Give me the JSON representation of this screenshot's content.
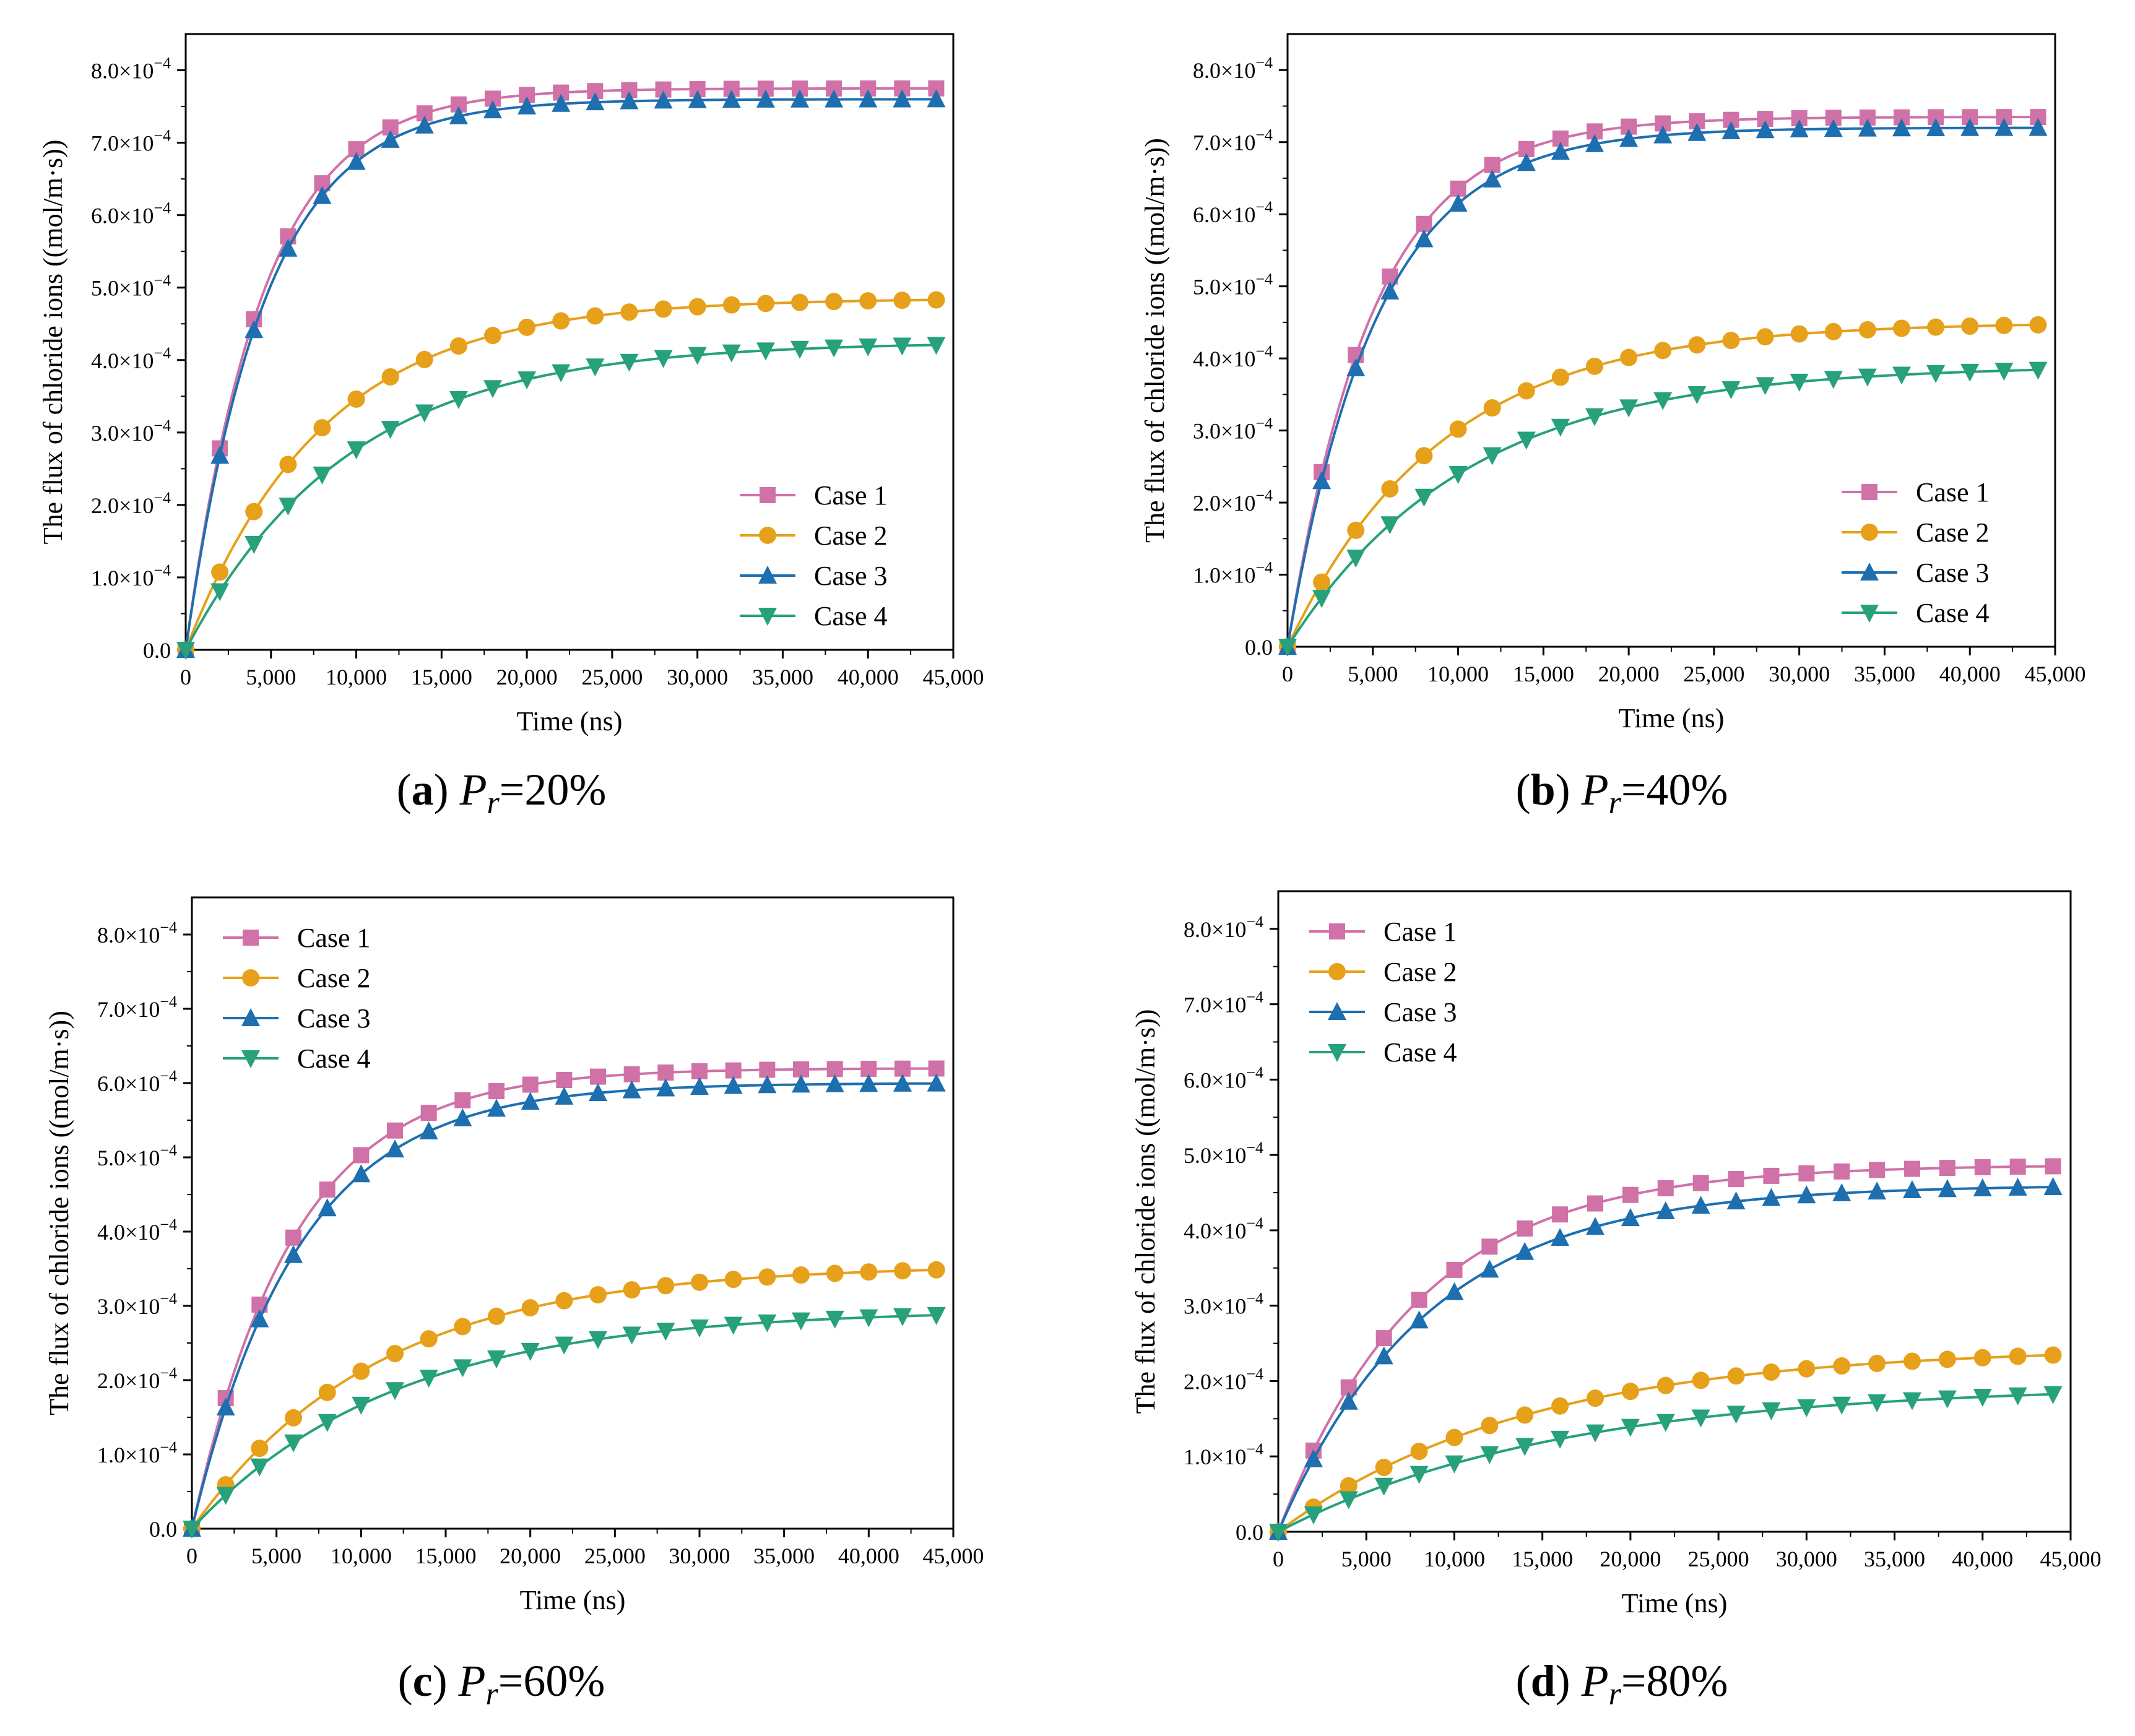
{
  "figure": {
    "series_colors": [
      "#D071A8",
      "#E6A01A",
      "#1D6FB0",
      "#26A17C"
    ],
    "series_markers": [
      "square",
      "circle",
      "triangle-up",
      "triangle-down"
    ],
    "axis_color": "#000000"
  },
  "chart_data": [
    {
      "type": "line",
      "panel_letter": "a",
      "caption_symbol": "P",
      "caption_subscript": "r",
      "caption_operator": "=",
      "caption_value": "20%",
      "xlabel": "Time  (ns)",
      "ylabel": "The flux of chloride ions  ((mol/m·s))",
      "xlim": [
        0,
        45000
      ],
      "ylim": [
        0,
        0.00085
      ],
      "x_ticks": [
        "0",
        "5,000",
        "10,000",
        "15,000",
        "20,000",
        "25,000",
        "30,000",
        "35,000",
        "40,000",
        "45,000"
      ],
      "y_ticks": [
        {
          "mantissa": "0.0",
          "exp": ""
        },
        {
          "mantissa": "1.0×10",
          "exp": "−4"
        },
        {
          "mantissa": "2.0×10",
          "exp": "−4"
        },
        {
          "mantissa": "3.0×10",
          "exp": "−4"
        },
        {
          "mantissa": "4.0×10",
          "exp": "−4"
        },
        {
          "mantissa": "5.0×10",
          "exp": "−4"
        },
        {
          "mantissa": "6.0×10",
          "exp": "−4"
        },
        {
          "mantissa": "7.0×10",
          "exp": "−4"
        },
        {
          "mantissa": "8.0×10",
          "exp": "−4"
        }
      ],
      "legend_position": "bottom-right",
      "grid": false,
      "series": [
        {
          "name": "Case 1",
          "final": 0.000775,
          "tau": 4500
        },
        {
          "name": "Case 2",
          "final": 0.000485,
          "tau": 8000
        },
        {
          "name": "Case 3",
          "final": 0.00076,
          "tau": 4600
        },
        {
          "name": "Case 4",
          "final": 0.000425,
          "tau": 9500
        }
      ]
    },
    {
      "type": "line",
      "panel_letter": "b",
      "caption_symbol": "P",
      "caption_subscript": "r",
      "caption_operator": "=",
      "caption_value": "40%",
      "xlabel": "Time  (ns)",
      "ylabel": "The flux of chloride ions  ((mol/m·s))",
      "xlim": [
        0,
        45000
      ],
      "ylim": [
        0,
        0.00085
      ],
      "x_ticks": [
        "0",
        "5,000",
        "10,000",
        "15,000",
        "20,000",
        "25,000",
        "30,000",
        "35,000",
        "40,000",
        "45,000"
      ],
      "y_ticks": [
        {
          "mantissa": "0.0",
          "exp": ""
        },
        {
          "mantissa": "1.0×10",
          "exp": "−4"
        },
        {
          "mantissa": "2.0×10",
          "exp": "−4"
        },
        {
          "mantissa": "3.0×10",
          "exp": "−4"
        },
        {
          "mantissa": "4.0×10",
          "exp": "−4"
        },
        {
          "mantissa": "5.0×10",
          "exp": "−4"
        },
        {
          "mantissa": "6.0×10",
          "exp": "−4"
        },
        {
          "mantissa": "7.0×10",
          "exp": "−4"
        },
        {
          "mantissa": "8.0×10",
          "exp": "−4"
        }
      ],
      "legend_position": "bottom-right",
      "grid": false,
      "series": [
        {
          "name": "Case 1",
          "final": 0.000735,
          "tau": 5000
        },
        {
          "name": "Case 2",
          "final": 0.00045,
          "tau": 9000
        },
        {
          "name": "Case 3",
          "final": 0.00072,
          "tau": 5200
        },
        {
          "name": "Case 4",
          "final": 0.00039,
          "tau": 10500
        }
      ]
    },
    {
      "type": "line",
      "panel_letter": "c",
      "caption_symbol": "P",
      "caption_subscript": "r",
      "caption_operator": "=",
      "caption_value": "60%",
      "xlabel": "Time (ns)",
      "ylabel": "The flux of chloride ions ((mol/m·s))",
      "xlim": [
        0,
        45000
      ],
      "ylim": [
        0,
        0.00085
      ],
      "x_ticks": [
        "0",
        "5,000",
        "10,000",
        "15,000",
        "20,000",
        "25,000",
        "30,000",
        "35,000",
        "40,000",
        "45,000"
      ],
      "y_ticks": [
        {
          "mantissa": "0.0",
          "exp": ""
        },
        {
          "mantissa": "1.0×10",
          "exp": "−4"
        },
        {
          "mantissa": "2.0×10",
          "exp": "−4"
        },
        {
          "mantissa": "3.0×10",
          "exp": "−4"
        },
        {
          "mantissa": "4.0×10",
          "exp": "−4"
        },
        {
          "mantissa": "5.0×10",
          "exp": "−4"
        },
        {
          "mantissa": "6.0×10",
          "exp": "−4"
        },
        {
          "mantissa": "7.0×10",
          "exp": "−4"
        },
        {
          "mantissa": "8.0×10",
          "exp": "−4"
        }
      ],
      "legend_position": "top-left",
      "grid": false,
      "series": [
        {
          "name": "Case 1",
          "final": 0.00062,
          "tau": 6000
        },
        {
          "name": "Case 2",
          "final": 0.000355,
          "tau": 11000
        },
        {
          "name": "Case 3",
          "final": 0.0006,
          "tau": 6300
        },
        {
          "name": "Case 4",
          "final": 0.000295,
          "tau": 12000
        }
      ]
    },
    {
      "type": "line",
      "panel_letter": "d",
      "caption_symbol": "P",
      "caption_subscript": "r",
      "caption_operator": "=",
      "caption_value": "80%",
      "xlabel": "Time  (ns)",
      "ylabel": "The flux of chloride ions  ((mol/m·s))",
      "xlim": [
        0,
        45000
      ],
      "ylim": [
        0,
        0.00085
      ],
      "x_ticks": [
        "0",
        "5,000",
        "10,000",
        "15,000",
        "20,000",
        "25,000",
        "30,000",
        "35,000",
        "40,000",
        "45,000"
      ],
      "y_ticks": [
        {
          "mantissa": "0.0",
          "exp": ""
        },
        {
          "mantissa": "1.0×10",
          "exp": "−4"
        },
        {
          "mantissa": "2.0×10",
          "exp": "−4"
        },
        {
          "mantissa": "3.0×10",
          "exp": "−4"
        },
        {
          "mantissa": "4.0×10",
          "exp": "−4"
        },
        {
          "mantissa": "5.0×10",
          "exp": "−4"
        },
        {
          "mantissa": "6.0×10",
          "exp": "−4"
        },
        {
          "mantissa": "7.0×10",
          "exp": "−4"
        },
        {
          "mantissa": "8.0×10",
          "exp": "−4"
        }
      ],
      "legend_position": "top-left",
      "grid": false,
      "series": [
        {
          "name": "Case 1",
          "final": 0.000487,
          "tau": 8000
        },
        {
          "name": "Case 2",
          "final": 0.000245,
          "tau": 14000
        },
        {
          "name": "Case 3",
          "final": 0.00046,
          "tau": 8500
        },
        {
          "name": "Case 4",
          "final": 0.000195,
          "tau": 16000
        }
      ]
    }
  ]
}
